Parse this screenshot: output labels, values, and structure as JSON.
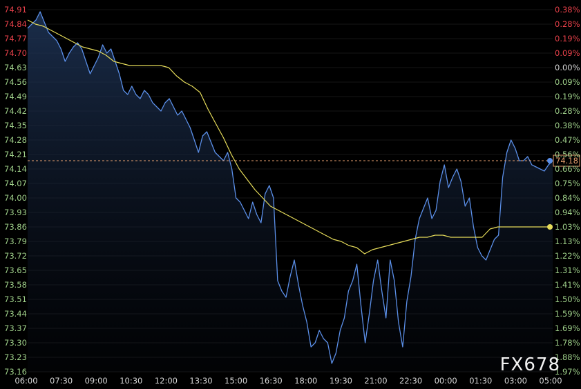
{
  "chart_data": {
    "type": "line",
    "ylim": [
      73.16,
      74.91
    ],
    "y_ticks": [
      "74.91",
      "74.84",
      "74.77",
      "74.70",
      "74.63",
      "74.56",
      "74.49",
      "74.42",
      "74.35",
      "74.28",
      "74.21",
      "74.14",
      "74.07",
      "74.00",
      "73.93",
      "73.86",
      "73.79",
      "73.72",
      "73.65",
      "73.58",
      "73.51",
      "73.44",
      "73.37",
      "73.30",
      "73.23",
      "73.16"
    ],
    "pct_ticks": [
      "0.38%",
      "0.28%",
      "0.19%",
      "0.09%",
      "0.00%",
      "0.09%",
      "0.19%",
      "0.28%",
      "0.38%",
      "0.47%",
      "0.56%",
      "0.66%",
      "0.75%",
      "0.84%",
      "0.94%",
      "1.03%",
      "1.13%",
      "1.22%",
      "1.31%",
      "1.41%",
      "1.50%",
      "1.59%",
      "1.69%",
      "1.78%",
      "1.88%",
      "1.97%"
    ],
    "x_ticks": [
      "06:00",
      "07:30",
      "09:00",
      "10:30",
      "12:00",
      "13:30",
      "15:00",
      "16:30",
      "18:00",
      "19:30",
      "21:00",
      "22:30",
      "00:00",
      "01:30",
      "03:00",
      "05:00"
    ],
    "reference_level": 74.63,
    "last_price": 74.18,
    "last_price_label": "74.18",
    "series": [
      {
        "name": "",
        "color": "#5b8fe8",
        "values": [
          74.82,
          74.84,
          74.86,
          74.9,
          74.85,
          74.8,
          74.78,
          74.76,
          74.72,
          74.66,
          74.7,
          74.73,
          74.75,
          74.72,
          74.66,
          74.6,
          74.64,
          74.68,
          74.74,
          74.7,
          74.72,
          74.66,
          74.6,
          74.52,
          74.5,
          74.54,
          74.5,
          74.48,
          74.52,
          74.5,
          74.46,
          74.44,
          74.42,
          74.46,
          74.48,
          74.44,
          74.4,
          74.42,
          74.38,
          74.34,
          74.28,
          74.22,
          74.3,
          74.32,
          74.27,
          74.22,
          74.2,
          74.18,
          74.22,
          74.14,
          74.0,
          73.98,
          73.94,
          73.9,
          73.98,
          73.92,
          73.88,
          74.02,
          74.06,
          74.0,
          73.6,
          73.55,
          73.52,
          73.62,
          73.7,
          73.58,
          73.48,
          73.4,
          73.28,
          73.3,
          73.36,
          73.32,
          73.3,
          73.2,
          73.25,
          73.36,
          73.42,
          73.55,
          73.6,
          73.68,
          73.48,
          73.3,
          73.44,
          73.6,
          73.7,
          73.55,
          73.42,
          73.7,
          73.6,
          73.4,
          73.28,
          73.5,
          73.62,
          73.8,
          73.9,
          73.95,
          74.0,
          73.9,
          73.94,
          74.08,
          74.16,
          74.05,
          74.1,
          74.14,
          74.08,
          73.96,
          74.0,
          73.86,
          73.76,
          73.72,
          73.7,
          73.75,
          73.8,
          73.82,
          74.1,
          74.22,
          74.28,
          74.24,
          74.18,
          74.18,
          74.2,
          74.16,
          74.15,
          74.14,
          74.13,
          74.16,
          74.18
        ]
      },
      {
        "name": "",
        "color": "#e6dc5a",
        "values": [
          74.86,
          74.84,
          74.83,
          74.81,
          74.79,
          74.77,
          74.75,
          74.73,
          74.72,
          74.71,
          74.69,
          74.66,
          74.65,
          74.64,
          74.64,
          74.64,
          74.64,
          74.64,
          74.63,
          74.59,
          74.56,
          74.54,
          74.51,
          74.43,
          74.36,
          74.29,
          74.21,
          74.14,
          74.09,
          74.04,
          74.0,
          73.96,
          73.94,
          73.92,
          73.9,
          73.88,
          73.86,
          73.84,
          73.82,
          73.8,
          73.79,
          73.77,
          73.76,
          73.73,
          73.75,
          73.76,
          73.77,
          73.78,
          73.79,
          73.8,
          73.81,
          73.81,
          73.82,
          73.82,
          73.81,
          73.81,
          73.81,
          73.81,
          73.81,
          73.85,
          73.86,
          73.86,
          73.86,
          73.86,
          73.86,
          73.86,
          73.86,
          73.86
        ]
      }
    ]
  },
  "watermark": "FX678"
}
